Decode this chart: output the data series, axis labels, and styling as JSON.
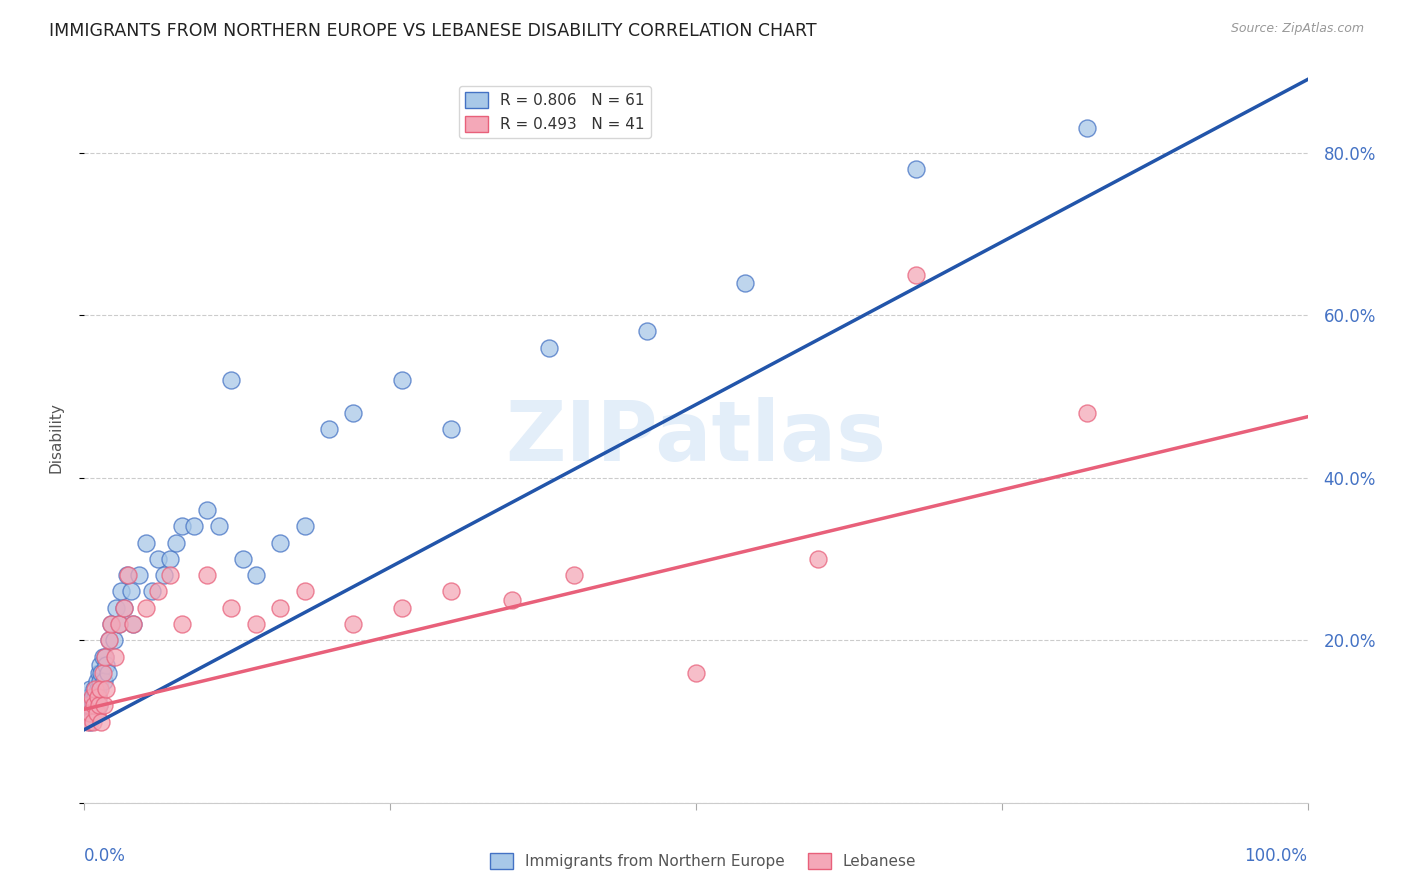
{
  "title": "IMMIGRANTS FROM NORTHERN EUROPE VS LEBANESE DISABILITY CORRELATION CHART",
  "source": "Source: ZipAtlas.com",
  "ylabel": "Disability",
  "xmin": 0.0,
  "xmax": 1.0,
  "ymin": 0.0,
  "ymax": 0.9,
  "blue_R": 0.806,
  "blue_N": 61,
  "pink_R": 0.493,
  "pink_N": 41,
  "blue_color": "#a8c8e8",
  "pink_color": "#f4a8b8",
  "blue_edge_color": "#4472c4",
  "pink_edge_color": "#e8607a",
  "blue_line_color": "#2255aa",
  "pink_line_color": "#e8607a",
  "legend_label_blue": "Immigrants from Northern Europe",
  "legend_label_pink": "Lebanese",
  "watermark_text": "ZIPatlas",
  "blue_scatter_x": [
    0.002,
    0.003,
    0.004,
    0.005,
    0.005,
    0.006,
    0.007,
    0.007,
    0.008,
    0.008,
    0.009,
    0.009,
    0.01,
    0.01,
    0.011,
    0.011,
    0.012,
    0.012,
    0.013,
    0.013,
    0.014,
    0.015,
    0.016,
    0.017,
    0.018,
    0.019,
    0.02,
    0.022,
    0.024,
    0.026,
    0.028,
    0.03,
    0.032,
    0.035,
    0.038,
    0.04,
    0.045,
    0.05,
    0.055,
    0.06,
    0.065,
    0.07,
    0.075,
    0.08,
    0.09,
    0.1,
    0.11,
    0.12,
    0.13,
    0.14,
    0.16,
    0.18,
    0.2,
    0.22,
    0.26,
    0.3,
    0.38,
    0.46,
    0.54,
    0.68,
    0.82
  ],
  "blue_scatter_y": [
    0.12,
    0.11,
    0.13,
    0.1,
    0.14,
    0.12,
    0.13,
    0.11,
    0.14,
    0.12,
    0.13,
    0.11,
    0.15,
    0.12,
    0.14,
    0.13,
    0.16,
    0.12,
    0.15,
    0.17,
    0.16,
    0.18,
    0.15,
    0.18,
    0.17,
    0.16,
    0.2,
    0.22,
    0.2,
    0.24,
    0.22,
    0.26,
    0.24,
    0.28,
    0.26,
    0.22,
    0.28,
    0.32,
    0.26,
    0.3,
    0.28,
    0.3,
    0.32,
    0.34,
    0.34,
    0.36,
    0.34,
    0.52,
    0.3,
    0.28,
    0.32,
    0.34,
    0.46,
    0.48,
    0.52,
    0.46,
    0.56,
    0.58,
    0.64,
    0.78,
    0.83
  ],
  "pink_scatter_x": [
    0.003,
    0.004,
    0.005,
    0.006,
    0.007,
    0.008,
    0.009,
    0.01,
    0.011,
    0.012,
    0.013,
    0.014,
    0.015,
    0.016,
    0.017,
    0.018,
    0.02,
    0.022,
    0.025,
    0.028,
    0.032,
    0.036,
    0.04,
    0.05,
    0.06,
    0.07,
    0.08,
    0.1,
    0.12,
    0.14,
    0.16,
    0.18,
    0.22,
    0.26,
    0.3,
    0.35,
    0.4,
    0.5,
    0.6,
    0.68,
    0.82
  ],
  "pink_scatter_y": [
    0.1,
    0.12,
    0.11,
    0.13,
    0.1,
    0.12,
    0.14,
    0.11,
    0.13,
    0.12,
    0.14,
    0.1,
    0.16,
    0.12,
    0.18,
    0.14,
    0.2,
    0.22,
    0.18,
    0.22,
    0.24,
    0.28,
    0.22,
    0.24,
    0.26,
    0.28,
    0.22,
    0.28,
    0.24,
    0.22,
    0.24,
    0.26,
    0.22,
    0.24,
    0.26,
    0.25,
    0.28,
    0.16,
    0.3,
    0.65,
    0.48
  ],
  "blue_trendline_x": [
    0.0,
    1.0
  ],
  "blue_trendline_y": [
    0.09,
    0.89
  ],
  "pink_trendline_x": [
    0.0,
    1.0
  ],
  "pink_trendline_y": [
    0.115,
    0.475
  ],
  "ytick_vals": [
    0.0,
    0.2,
    0.4,
    0.6,
    0.8
  ],
  "ytick_labels": [
    "",
    "20.0%",
    "40.0%",
    "60.0%",
    "80.0%"
  ]
}
